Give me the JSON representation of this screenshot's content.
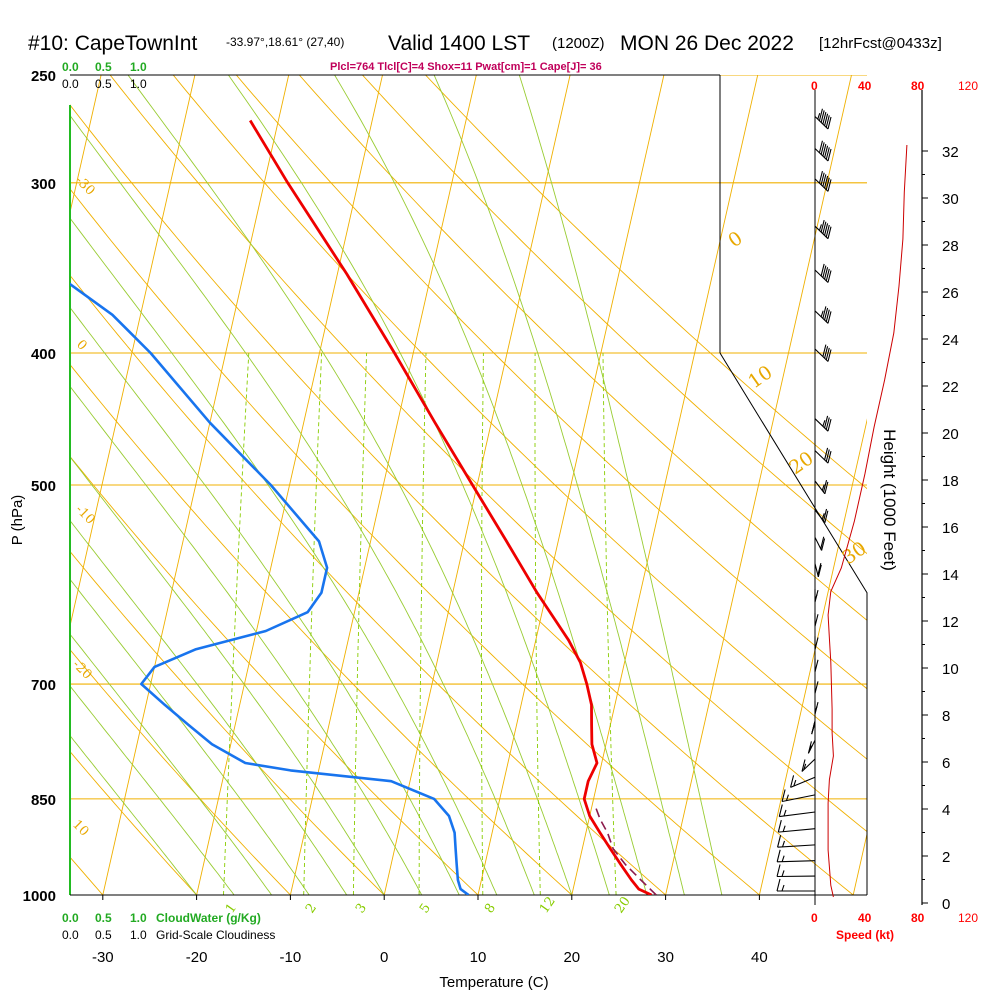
{
  "header": {
    "station": "#10: CapeTownInt",
    "coords": "-33.97°,18.61° (27,40)",
    "valid": "Valid 1400 LST",
    "utc": "(1200Z)",
    "date": "MON 26 Dec 2022",
    "forecast": "[12hrFcst@0433z]",
    "indices": "Plcl=764 Tlcl[C]=4 Shox=11 Pwat[cm]=1 Cape[J]= 36"
  },
  "labels": {
    "cloud_water_ticks": [
      "0.0",
      "0.5",
      "1.0"
    ],
    "cloudiness_ticks": [
      "0.0",
      "0.5",
      "1.0"
    ],
    "cloud_water_title": "CloudWater (g/Kg)",
    "cloudiness_title": "Grid-Scale Cloudiness",
    "speed_ticks": [
      "0",
      "40",
      "80",
      "120"
    ],
    "speed_title": "Speed (kt)"
  },
  "colors": {
    "temperature": "#ee0000",
    "dewpoint": "#1874ee",
    "isotherm": "#f0b000",
    "dry_adiabat": "#f0b000",
    "moist_adiabat": "#99cc33",
    "mixing_ratio": "#88cc00",
    "parcel": "#8b1a4b",
    "speed_profile": "#cc0000"
  },
  "chart_data": {
    "type": "line",
    "title": "Skew-T log-P sounding",
    "xlabel": "Temperature (C)",
    "ylabel": "P (hPa)",
    "y2label": "Height (1000 Feet)",
    "x_ticks": [
      -30,
      -20,
      -10,
      0,
      10,
      20,
      30,
      40
    ],
    "x_range": [
      -35,
      46
    ],
    "pressure_ticks": [
      250,
      300,
      400,
      500,
      700,
      850,
      1000
    ],
    "pressure_range": [
      1000,
      250
    ],
    "height_ticks_kft": [
      0,
      2,
      4,
      6,
      8,
      10,
      12,
      14,
      16,
      18,
      20,
      22,
      24,
      26,
      28,
      30,
      32
    ],
    "grid": true,
    "dry_adiabat_labels": [
      "0",
      "10",
      "20",
      "30",
      "-30",
      "-20",
      "-10",
      "0",
      "10"
    ],
    "mixing_ratio_labels": [
      "1",
      "2",
      "3",
      "5",
      "8",
      "12",
      "20"
    ],
    "series": [
      {
        "name": "Temperature",
        "pressure": [
          1000,
          990,
          975,
          950,
          925,
          900,
          875,
          850,
          825,
          800,
          775,
          750,
          725,
          700,
          675,
          650,
          625,
          600,
          575,
          550,
          500,
          450,
          400,
          350,
          300,
          270
        ],
        "temperature_c": [
          28.5,
          27.0,
          26.0,
          24.5,
          23.0,
          21.5,
          20.0,
          19.0,
          19.0,
          19.5,
          18.5,
          18.0,
          17.5,
          16.5,
          15.3,
          13.5,
          11.3,
          9.0,
          6.8,
          4.5,
          -0.5,
          -6.0,
          -12.0,
          -19.0,
          -27.5,
          -33.0
        ]
      },
      {
        "name": "Dewpoint",
        "pressure": [
          1000,
          990,
          975,
          950,
          925,
          900,
          875,
          850,
          825,
          810,
          800,
          775,
          750,
          725,
          700,
          680,
          660,
          640,
          620,
          600,
          575,
          550,
          500,
          450,
          400,
          375,
          350,
          330,
          300,
          270
        ],
        "dewpoint_c": [
          9.0,
          8.0,
          7.5,
          7.0,
          6.5,
          6.0,
          5.0,
          3.0,
          -2.0,
          -13.0,
          -18.0,
          -22.0,
          -25.0,
          -28.0,
          -31.0,
          -30.0,
          -26.0,
          -19.0,
          -15.0,
          -14.0,
          -14.0,
          -15.5,
          -22.0,
          -30.0,
          -38.0,
          -43.0,
          -50.0,
          -56.0,
          -60.0,
          -66.0
        ]
      },
      {
        "name": "Parcel",
        "pressure": [
          1000,
          975,
          950,
          925,
          900,
          880,
          864
        ],
        "temperature_c": [
          29.0,
          27.0,
          25.0,
          23.3,
          22.3,
          21.2,
          20.5
        ]
      }
    ],
    "surface_temperature_c": 29.8,
    "surface_dewpoint_c": 13.0,
    "wind_speed_profile": {
      "x_range_kt": [
        0,
        120
      ],
      "height_kft": [
        0,
        0.5,
        2,
        4,
        5,
        6,
        7,
        8,
        10,
        11,
        12,
        13,
        14,
        16,
        18,
        20,
        22,
        24,
        26,
        28,
        30,
        32
      ],
      "speed_kt": [
        14,
        12,
        10,
        10,
        11,
        14,
        13,
        13,
        12,
        11,
        10,
        12,
        20,
        30,
        38,
        45,
        53,
        60,
        64,
        67,
        68,
        70
      ]
    },
    "wind_barbs": [
      {
        "pressure": 1000,
        "dir": 180,
        "spd": 15
      },
      {
        "pressure": 975,
        "dir": 182,
        "spd": 15
      },
      {
        "pressure": 950,
        "dir": 185,
        "spd": 15
      },
      {
        "pressure": 925,
        "dir": 190,
        "spd": 15
      },
      {
        "pressure": 900,
        "dir": 195,
        "spd": 15
      },
      {
        "pressure": 875,
        "dir": 200,
        "spd": 15
      },
      {
        "pressure": 850,
        "dir": 210,
        "spd": 15
      },
      {
        "pressure": 825,
        "dir": 230,
        "spd": 15
      },
      {
        "pressure": 800,
        "dir": 250,
        "spd": 15
      },
      {
        "pressure": 775,
        "dir": 260,
        "spd": 15
      },
      {
        "pressure": 750,
        "dir": 265,
        "spd": 15
      },
      {
        "pressure": 725,
        "dir": 270,
        "spd": 15
      },
      {
        "pressure": 700,
        "dir": 270,
        "spd": 12
      },
      {
        "pressure": 675,
        "dir": 270,
        "spd": 12
      },
      {
        "pressure": 650,
        "dir": 270,
        "spd": 10
      },
      {
        "pressure": 625,
        "dir": 270,
        "spd": 10
      },
      {
        "pressure": 600,
        "dir": 270,
        "spd": 15
      },
      {
        "pressure": 575,
        "dir": 275,
        "spd": 20
      },
      {
        "pressure": 550,
        "dir": 280,
        "spd": 20
      },
      {
        "pressure": 525,
        "dir": 285,
        "spd": 25
      },
      {
        "pressure": 500,
        "dir": 285,
        "spd": 25
      },
      {
        "pressure": 475,
        "dir": 290,
        "spd": 30
      },
      {
        "pressure": 450,
        "dir": 290,
        "spd": 35
      },
      {
        "pressure": 400,
        "dir": 290,
        "spd": 40
      },
      {
        "pressure": 375,
        "dir": 290,
        "spd": 45
      },
      {
        "pressure": 350,
        "dir": 290,
        "spd": 50
      },
      {
        "pressure": 325,
        "dir": 290,
        "spd": 55
      },
      {
        "pressure": 300,
        "dir": 290,
        "spd": 60
      },
      {
        "pressure": 285,
        "dir": 290,
        "spd": 60
      },
      {
        "pressure": 270,
        "dir": 290,
        "spd": 65
      }
    ]
  }
}
